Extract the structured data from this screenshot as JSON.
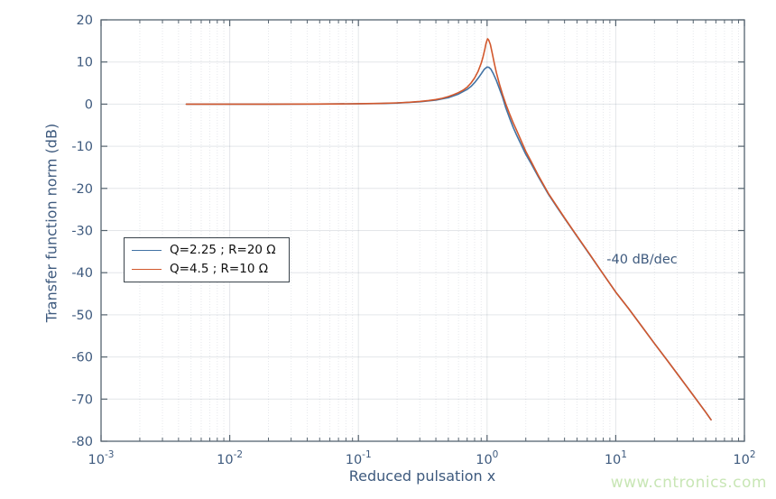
{
  "watermark": {
    "text": "www.cntronics.com",
    "color": "#c8e6b5"
  },
  "colors": {
    "axis_text": "#3e5a7e",
    "axis_box": "#55636f",
    "grid_major": "rgba(100,115,135,0.18)",
    "grid_minor": "rgba(100,115,135,0.16)",
    "legend_border": "#39424a",
    "series_blue": "#4273a4",
    "series_orange": "#d2582d"
  },
  "chart_data": {
    "type": "line",
    "x_scale": "log",
    "title": "",
    "xlabel": "Reduced pulsation x",
    "ylabel": "Transfer function norm (dB)",
    "xlim": [
      0.001,
      100
    ],
    "ylim": [
      -80,
      20
    ],
    "grid": true,
    "legend_position": "left-center",
    "x_ticks": [
      {
        "base": "10",
        "exp": "-3"
      },
      {
        "base": "10",
        "exp": "-2"
      },
      {
        "base": "10",
        "exp": "-1"
      },
      {
        "base": "10",
        "exp": "0"
      },
      {
        "base": "10",
        "exp": "1"
      },
      {
        "base": "10",
        "exp": "2"
      }
    ],
    "y_ticks": [
      20,
      10,
      0,
      -10,
      -20,
      -30,
      -40,
      -50,
      -60,
      -70,
      -80
    ],
    "annotations": [
      {
        "text": "-40 dB/dec",
        "x": 16,
        "y": -37
      }
    ],
    "series": [
      {
        "name": "Q=2.25 ; R=20 Ω",
        "color": "#4273a4",
        "points": [
          [
            0.0046,
            0
          ],
          [
            0.01,
            0
          ],
          [
            0.02,
            0
          ],
          [
            0.05,
            0.02
          ],
          [
            0.1,
            0.08
          ],
          [
            0.15,
            0.15
          ],
          [
            0.2,
            0.25
          ],
          [
            0.3,
            0.55
          ],
          [
            0.4,
            0.95
          ],
          [
            0.5,
            1.55
          ],
          [
            0.6,
            2.4
          ],
          [
            0.7,
            3.5
          ],
          [
            0.75,
            4.2
          ],
          [
            0.8,
            5.1
          ],
          [
            0.85,
            6.1
          ],
          [
            0.9,
            7.2
          ],
          [
            0.95,
            8.25
          ],
          [
            1.0,
            8.8
          ],
          [
            1.03,
            8.75
          ],
          [
            1.07,
            8.3
          ],
          [
            1.12,
            7.2
          ],
          [
            1.18,
            5.6
          ],
          [
            1.25,
            3.6
          ],
          [
            1.32,
            1.6
          ],
          [
            1.4,
            -0.9
          ],
          [
            1.5,
            -3.4
          ],
          [
            1.6,
            -5.6
          ],
          [
            1.7,
            -7.4
          ],
          [
            1.8,
            -9.0
          ],
          [
            2.0,
            -11.9
          ],
          [
            2.2,
            -14.1
          ],
          [
            2.5,
            -17.2
          ],
          [
            3.0,
            -21.4
          ],
          [
            3.5,
            -24.5
          ],
          [
            4.0,
            -27.1
          ],
          [
            5.0,
            -31.4
          ],
          [
            6.3,
            -35.8
          ],
          [
            7.9,
            -40.1
          ],
          [
            10,
            -44.6
          ],
          [
            12.5,
            -48.4
          ],
          [
            16,
            -52.8
          ],
          [
            20,
            -56.8
          ],
          [
            25,
            -60.7
          ],
          [
            32,
            -65.1
          ],
          [
            40,
            -69.1
          ],
          [
            50,
            -73.1
          ],
          [
            55,
            -74.9
          ]
        ]
      },
      {
        "name": "Q=4.5 ; R=10 Ω",
        "color": "#d2582d",
        "points": [
          [
            0.0046,
            0
          ],
          [
            0.01,
            0
          ],
          [
            0.02,
            0
          ],
          [
            0.04,
            0.02
          ],
          [
            0.07,
            0.05
          ],
          [
            0.1,
            0.1
          ],
          [
            0.15,
            0.18
          ],
          [
            0.2,
            0.3
          ],
          [
            0.25,
            0.45
          ],
          [
            0.3,
            0.65
          ],
          [
            0.35,
            0.85
          ],
          [
            0.4,
            1.1
          ],
          [
            0.45,
            1.4
          ],
          [
            0.5,
            1.8
          ],
          [
            0.55,
            2.25
          ],
          [
            0.6,
            2.75
          ],
          [
            0.65,
            3.3
          ],
          [
            0.7,
            4.0
          ],
          [
            0.75,
            5.0
          ],
          [
            0.8,
            6.2
          ],
          [
            0.85,
            7.7
          ],
          [
            0.9,
            9.7
          ],
          [
            0.93,
            11.2
          ],
          [
            0.96,
            13.0
          ],
          [
            0.98,
            14.3
          ],
          [
            1.0,
            15.2
          ],
          [
            1.01,
            15.5
          ],
          [
            1.03,
            15.2
          ],
          [
            1.06,
            14.2
          ],
          [
            1.1,
            11.9
          ],
          [
            1.14,
            9.6
          ],
          [
            1.18,
            7.5
          ],
          [
            1.25,
            4.7
          ],
          [
            1.32,
            2.3
          ],
          [
            1.4,
            0.0
          ],
          [
            1.5,
            -2.4
          ],
          [
            1.6,
            -4.5
          ],
          [
            1.7,
            -6.3
          ],
          [
            1.8,
            -8.0
          ],
          [
            2.0,
            -11.2
          ],
          [
            2.2,
            -13.6
          ],
          [
            2.5,
            -16.9
          ],
          [
            3.0,
            -21.2
          ],
          [
            3.5,
            -24.3
          ],
          [
            4.0,
            -27.0
          ],
          [
            5.0,
            -31.3
          ],
          [
            6.3,
            -35.7
          ],
          [
            7.9,
            -40.1
          ],
          [
            10,
            -44.6
          ],
          [
            12.5,
            -48.4
          ],
          [
            16,
            -52.8
          ],
          [
            20,
            -56.8
          ],
          [
            25,
            -60.7
          ],
          [
            32,
            -65.1
          ],
          [
            40,
            -69.1
          ],
          [
            50,
            -73.1
          ],
          [
            55,
            -74.9
          ]
        ]
      }
    ]
  }
}
